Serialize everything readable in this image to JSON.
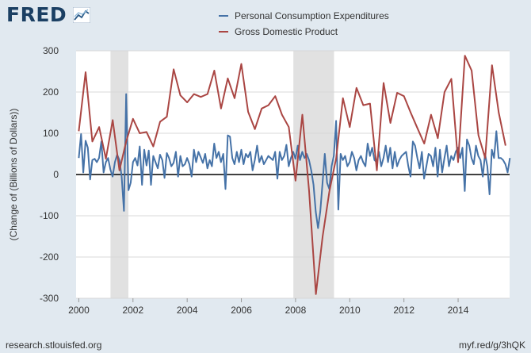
{
  "brand": "FRED",
  "footer": {
    "source": "research.stlouisfed.org",
    "link": "myf.red/g/3hQK"
  },
  "colors": {
    "pce": "#4572a7",
    "gdp": "#aa4643",
    "recession": "#e1e1e1"
  },
  "chart_data": {
    "type": "line",
    "title": "",
    "xlabel": "",
    "ylabel": "(Change of (Billions of Dollars))",
    "xlim": [
      1999.9,
      2015.9
    ],
    "ylim": [
      -300,
      300
    ],
    "yticks": [
      -300,
      -200,
      -100,
      0,
      100,
      200,
      300
    ],
    "xticks": [
      "2000",
      "2002",
      "2004",
      "2006",
      "2008",
      "2010",
      "2012",
      "2014"
    ],
    "xtick_values": [
      2000,
      2002,
      2004,
      2006,
      2008,
      2010,
      2012,
      2014
    ],
    "grid": true,
    "legend_position": "top-center",
    "recessions": [
      [
        2001.17,
        2001.83
      ],
      [
        2007.92,
        2009.42
      ]
    ],
    "series": [
      {
        "name": "Personal Consumption Expenditures",
        "frequency": "monthly",
        "start": 2000.0,
        "step": 0.0833,
        "values": [
          40,
          98,
          5,
          82,
          65,
          -12,
          35,
          38,
          30,
          40,
          80,
          5,
          30,
          40,
          12,
          -5,
          30,
          48,
          35,
          -5,
          -88,
          195,
          -38,
          -20,
          30,
          40,
          22,
          68,
          -25,
          60,
          22,
          58,
          -25,
          45,
          30,
          15,
          48,
          35,
          -8,
          52,
          40,
          20,
          28,
          55,
          -5,
          45,
          20,
          25,
          40,
          25,
          -5,
          60,
          30,
          55,
          42,
          28,
          50,
          15,
          35,
          20,
          75,
          40,
          55,
          30,
          50,
          -35,
          95,
          92,
          40,
          25,
          55,
          30,
          60,
          25,
          50,
          42,
          55,
          10,
          35,
          70,
          30,
          45,
          25,
          35,
          45,
          40,
          35,
          55,
          -10,
          55,
          35,
          45,
          72,
          20,
          40,
          55,
          38,
          70,
          35,
          55,
          40,
          50,
          35,
          10,
          -25,
          -90,
          -130,
          -90,
          -20,
          50,
          -20,
          -35,
          20,
          45,
          130,
          -85,
          50,
          35,
          45,
          20,
          30,
          55,
          40,
          10,
          35,
          45,
          30,
          20,
          75,
          45,
          65,
          35,
          30,
          55,
          20,
          40,
          70,
          30,
          65,
          15,
          55,
          20,
          35,
          45,
          50,
          55,
          20,
          -5,
          80,
          70,
          40,
          15,
          55,
          -10,
          20,
          50,
          45,
          20,
          65,
          -5,
          60,
          5,
          40,
          70,
          20,
          45,
          35,
          55,
          65,
          40,
          65,
          -40,
          85,
          70,
          40,
          25,
          70,
          45,
          35,
          -5,
          50,
          20,
          -48,
          60,
          40,
          105,
          40,
          40,
          35,
          25,
          5,
          40
        ]
      },
      {
        "name": "Gross Domestic Product",
        "frequency": "quarterly",
        "x": [
          2000.0,
          2000.25,
          2000.5,
          2000.75,
          2001.0,
          2001.25,
          2001.5,
          2001.75,
          2002.0,
          2002.25,
          2002.5,
          2002.75,
          2003.0,
          2003.25,
          2003.5,
          2003.75,
          2004.0,
          2004.25,
          2004.5,
          2004.75,
          2005.0,
          2005.25,
          2005.5,
          2005.75,
          2006.0,
          2006.25,
          2006.5,
          2006.75,
          2007.0,
          2007.25,
          2007.5,
          2007.75,
          2008.0,
          2008.25,
          2008.5,
          2008.75,
          2009.0,
          2009.25,
          2009.5,
          2009.75,
          2010.0,
          2010.25,
          2010.5,
          2010.75,
          2011.0,
          2011.25,
          2011.5,
          2011.75,
          2012.0,
          2012.25,
          2012.5,
          2012.75,
          2013.0,
          2013.25,
          2013.5,
          2013.75,
          2014.0,
          2014.25,
          2014.5,
          2014.75,
          2015.0,
          2015.25,
          2015.5,
          2015.75
        ],
        "values": [
          105,
          248,
          80,
          115,
          38,
          132,
          10,
          80,
          135,
          100,
          103,
          68,
          128,
          140,
          255,
          192,
          175,
          195,
          188,
          195,
          252,
          160,
          233,
          185,
          268,
          152,
          110,
          160,
          168,
          190,
          145,
          115,
          -15,
          145,
          -40,
          -290,
          -150,
          -40,
          40,
          185,
          115,
          210,
          168,
          172,
          10,
          222,
          125,
          198,
          190,
          150,
          112,
          75,
          145,
          88,
          200,
          232,
          30,
          288,
          252,
          95,
          40,
          265,
          150,
          70
        ]
      }
    ]
  }
}
